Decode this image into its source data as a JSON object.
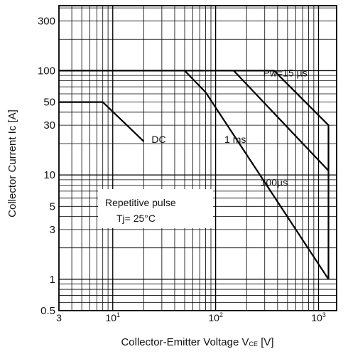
{
  "chart_data": {
    "type": "line",
    "title": "",
    "xlabel": "Collector-Emitter Voltage V",
    "xlabel_sub": "CE",
    "xlabel_unit": " [V]",
    "ylabel": "Collector Current Ic [A]",
    "x_scale": "log",
    "y_scale": "log",
    "xlim": [
      3,
      1500
    ],
    "ylim": [
      0.5,
      420
    ],
    "grid": true,
    "x_ticks": [
      {
        "value": 3,
        "base": "3",
        "exp": ""
      },
      {
        "value": 10,
        "base": "10",
        "exp": "1"
      },
      {
        "value": 100,
        "base": "10",
        "exp": "2"
      },
      {
        "value": 1000,
        "base": "10",
        "exp": "3"
      }
    ],
    "y_ticks": [
      {
        "value": 0.5,
        "label": "0.5"
      },
      {
        "value": 1,
        "label": "1"
      },
      {
        "value": 3,
        "label": "3"
      },
      {
        "value": 5,
        "label": "5"
      },
      {
        "value": 10,
        "label": "10"
      },
      {
        "value": 30,
        "label": "30"
      },
      {
        "value": 50,
        "label": "50"
      },
      {
        "value": 100,
        "label": "100"
      },
      {
        "value": 300,
        "label": "300"
      }
    ],
    "series": [
      {
        "name": "DC",
        "points": [
          [
            3,
            50
          ],
          [
            8,
            50
          ],
          [
            20,
            21
          ]
        ]
      },
      {
        "name": "1 ms",
        "points": [
          [
            50,
            100
          ],
          [
            80,
            62
          ],
          [
            1250,
            1
          ]
        ]
      },
      {
        "name": "100µs",
        "points": [
          [
            150,
            100
          ],
          [
            1250,
            11
          ]
        ]
      },
      {
        "name": "Pw=15 µs",
        "points": [
          [
            3,
            100
          ],
          [
            370,
            100
          ],
          [
            1250,
            30
          ],
          [
            1250,
            1
          ]
        ]
      }
    ],
    "series_labels": [
      {
        "text": "DC",
        "x": 28,
        "y": 22
      },
      {
        "text": "1 ms",
        "x": 155,
        "y": 22
      },
      {
        "text": "100µs",
        "x": 370,
        "y": 8.5
      },
      {
        "text": "Pw=15 µs",
        "x": 475,
        "y": 95
      }
    ],
    "annotation": {
      "line1": "Repetitive pulse",
      "line2": "Tj= 25°C"
    }
  }
}
